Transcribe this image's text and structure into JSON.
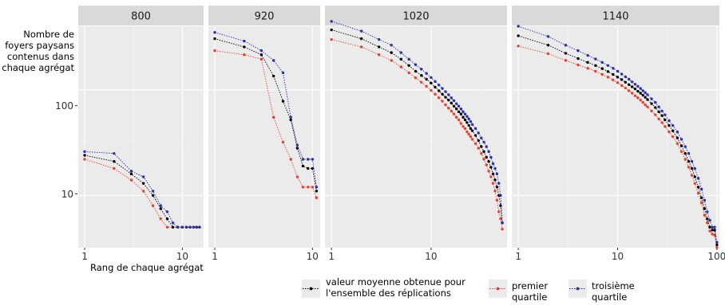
{
  "chart_data": {
    "type": "line",
    "scale": {
      "x": "log",
      "y": "log"
    },
    "ylabel_lines": [
      "Nombre de",
      "foyers paysans",
      "contenus dans",
      "chaque agrégat"
    ],
    "xlabel": "Rang de chaque agrégat",
    "y_ticks": [
      10,
      100
    ],
    "y_tick_labels": [
      "10",
      "100"
    ],
    "ylim": [
      3.2,
      400
    ],
    "legend": [
      {
        "key": "mean",
        "lines": [
          "valeur moyenne obtenue pour",
          "l'ensemble des réplications"
        ],
        "color": "#000000"
      },
      {
        "key": "q1",
        "lines": [
          "premier",
          "quartile"
        ],
        "color": "#E8402A"
      },
      {
        "key": "q3",
        "lines": [
          "troisième",
          "quartile"
        ],
        "color": "#2A2FA8"
      }
    ],
    "panels": [
      {
        "title": "800",
        "xlim": [
          0.86,
          16.5
        ],
        "x_ticks": [
          1,
          10
        ],
        "x_tick_labels": [
          "1",
          "10"
        ],
        "series": [
          {
            "key": "mean",
            "x": [
              1,
              2,
              3,
              4,
              5,
              6,
              7,
              8,
              9,
              10,
              11,
              12,
              13,
              14,
              15
            ],
            "y": [
              24,
              21,
              16,
              13,
              10,
              7.5,
              6,
              5,
              5,
              5,
              5,
              5,
              5,
              5,
              5
            ]
          },
          {
            "key": "q1",
            "x": [
              1,
              2,
              3,
              4,
              5,
              6,
              7,
              8,
              9,
              10,
              11,
              12,
              13,
              14,
              15
            ],
            "y": [
              22,
              18,
              14,
              11,
              8,
              6,
              5,
              5,
              5,
              5,
              5,
              5,
              5,
              5,
              5
            ]
          },
          {
            "key": "q3",
            "x": [
              1,
              2,
              3,
              4,
              5,
              6,
              7,
              8,
              9,
              10,
              11,
              12,
              13,
              14,
              15
            ],
            "y": [
              26,
              25,
              17,
              15,
              11,
              8,
              7,
              5.5,
              5,
              5,
              5,
              5,
              5,
              5,
              5
            ]
          }
        ]
      },
      {
        "title": "920",
        "xlim": [
          0.86,
          12
        ],
        "x_ticks": [
          1,
          10
        ],
        "x_tick_labels": [
          "1",
          "10"
        ],
        "series": [
          {
            "key": "mean",
            "x": [
              1,
              2,
              3,
              4,
              5,
              6,
              7,
              8,
              9,
              10,
              11
            ],
            "y": [
              305,
              255,
              215,
              135,
              78,
              52,
              28,
              19,
              18,
              18,
              11
            ]
          },
          {
            "key": "q1",
            "x": [
              1,
              2,
              3,
              4,
              5,
              6,
              7,
              8,
              9,
              10,
              11
            ],
            "y": [
              235,
              215,
              195,
              55,
              32,
              22,
              15,
              12,
              12,
              12,
              9.5
            ]
          },
          {
            "key": "q3",
            "x": [
              1,
              2,
              3,
              4,
              5,
              6,
              7,
              8,
              9,
              10,
              11
            ],
            "y": [
              350,
              290,
              235,
              190,
              145,
              55,
              30,
              22,
              22,
              22,
              12
            ]
          }
        ]
      },
      {
        "title": "1020",
        "xlim": [
          0.86,
          58
        ],
        "x_ticks": [
          1,
          10
        ],
        "x_tick_labels": [
          "1",
          "10"
        ],
        "series": [
          {
            "key": "mean",
            "x": [
              1,
              2,
              3,
              4,
              5,
              6,
              7,
              8,
              9,
              10,
              11,
              12,
              13,
              14,
              15,
              16,
              17,
              18,
              19,
              20,
              21,
              22,
              23,
              24,
              25,
              26,
              28,
              30,
              32,
              34,
              36,
              38,
              40,
              42,
              44,
              46,
              48,
              50,
              52
            ],
            "y": [
              370,
              305,
              255,
              225,
              195,
              170,
              150,
              137,
              126,
              116,
              106,
              98,
              91,
              85,
              80,
              75,
              70,
              66,
              62,
              59,
              55,
              52,
              49,
              46,
              43,
              41,
              37,
              33,
              29,
              26,
              23,
              21,
              18.5,
              16,
              14,
              12,
              10,
              8,
              5.5
            ]
          },
          {
            "key": "q1",
            "x": [
              1,
              2,
              3,
              4,
              5,
              6,
              7,
              8,
              9,
              10,
              11,
              12,
              13,
              14,
              15,
              16,
              17,
              18,
              19,
              20,
              21,
              22,
              23,
              24,
              25,
              26,
              28,
              30,
              32,
              34,
              36,
              38,
              40,
              42,
              44,
              46,
              48,
              50,
              52
            ],
            "y": [
              300,
              255,
              215,
              190,
              165,
              145,
              130,
              118,
              108,
              99,
              91,
              84,
              78,
              72,
              67,
              63,
              59,
              55,
              52,
              48,
              45,
              43,
              40,
              38,
              36,
              34,
              31,
              28,
              25,
              22,
              19.5,
              17,
              15,
              13,
              11,
              9,
              7,
              6,
              4.8
            ]
          },
          {
            "key": "q3",
            "x": [
              1,
              2,
              3,
              4,
              5,
              6,
              7,
              8,
              9,
              10,
              11,
              12,
              13,
              14,
              15,
              16,
              17,
              18,
              19,
              20,
              21,
              22,
              23,
              24,
              25,
              26,
              28,
              30,
              32,
              34,
              36,
              38,
              40,
              42,
              44,
              46,
              48,
              50,
              52
            ],
            "y": [
              445,
              360,
              300,
              265,
              225,
              195,
              173,
              157,
              143,
              131,
              120,
              111,
              103,
              96,
              90,
              84,
              79,
              74,
              70,
              66,
              62,
              59,
              56,
              53,
              50,
              47,
              43,
              39,
              35,
              32,
              29,
              26,
              23,
              20,
              18,
              16,
              13,
              10,
              5.5
            ]
          }
        ]
      },
      {
        "title": "1140",
        "xlim": [
          0.86,
          106
        ],
        "x_ticks": [
          1,
          10,
          100
        ],
        "x_tick_labels": [
          "1",
          "10",
          "100"
        ],
        "series": [
          {
            "key": "mean",
            "x": [
              1,
              2,
              3,
              4,
              5,
              6,
              7,
              8,
              9,
              10,
              11,
              12,
              13,
              14,
              15,
              16,
              17,
              18,
              19,
              20,
              22,
              24,
              26,
              28,
              30,
              33,
              36,
              40,
              44,
              48,
              52,
              56,
              60,
              65,
              70,
              75,
              80,
              85,
              90,
              95,
              100
            ],
            "y": [
              325,
              265,
              222,
              198,
              182,
              170,
              159,
              149,
              140,
              132,
              125,
              118,
              112,
              107,
              102,
              97,
              93,
              89,
              85,
              81,
              74,
              68,
              62,
              57,
              52,
              46,
              41,
              35,
              29.5,
              25,
              21,
              18,
              15,
              12,
              9.5,
              7.5,
              6,
              5,
              4.7,
              4.7,
              3.4
            ]
          },
          {
            "key": "q1",
            "x": [
              1,
              2,
              3,
              4,
              5,
              6,
              7,
              8,
              9,
              10,
              11,
              12,
              13,
              14,
              15,
              16,
              17,
              18,
              19,
              20,
              22,
              24,
              26,
              28,
              30,
              33,
              36,
              40,
              44,
              48,
              52,
              56,
              60,
              65,
              70,
              75,
              80,
              85,
              90,
              95,
              100
            ],
            "y": [
              260,
              220,
              190,
              172,
              160,
              150,
              140,
              132,
              124,
              117,
              110,
              104,
              98,
              93,
              88,
              84,
              80,
              76,
              72,
              69,
              63,
              58,
              53,
              49,
              45,
              40,
              36,
              31,
              26,
              22,
              18.5,
              15.5,
              13,
              10.5,
              8.5,
              6.5,
              5.5,
              4.6,
              4.3,
              4.2,
              3.2
            ]
          },
          {
            "key": "q3",
            "x": [
              1,
              2,
              3,
              4,
              5,
              6,
              7,
              8,
              9,
              10,
              11,
              12,
              13,
              14,
              15,
              16,
              17,
              18,
              19,
              20,
              22,
              24,
              26,
              28,
              30,
              33,
              36,
              40,
              44,
              48,
              52,
              56,
              60,
              65,
              70,
              75,
              80,
              85,
              90,
              95,
              100
            ],
            "y": [
              400,
              320,
              265,
              235,
              212,
              196,
              182,
              170,
              160,
              150,
              141,
              133,
              126,
              119,
              113,
              108,
              103,
              98,
              94,
              90,
              82,
              76,
              69,
              63,
              58,
              51,
              46,
              40,
              34,
              29,
              25,
              21,
              18,
              14.5,
              11.5,
              9,
              7,
              5.8,
              5,
              5,
              3.6
            ]
          }
        ]
      }
    ]
  }
}
